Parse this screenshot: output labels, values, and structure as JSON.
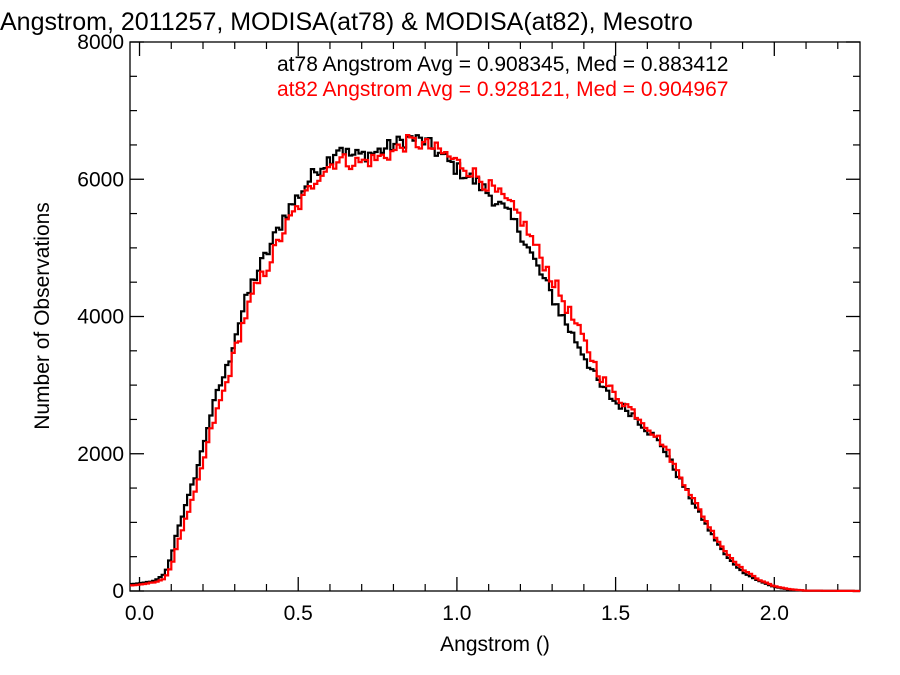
{
  "chart_data": {
    "type": "line",
    "title": "Angstrom, 2011257, MODISA(at78) & MODISA(at82), Mesotro",
    "xlabel": "Angstrom ()",
    "ylabel": "Number of Observations",
    "xlim": [
      -0.03,
      2.27
    ],
    "ylim": [
      0,
      8000
    ],
    "x_ticks": [
      0.0,
      0.5,
      1.0,
      1.5,
      2.0
    ],
    "x_tick_labels": [
      "0.0",
      "0.5",
      "1.0",
      "1.5",
      "2.0"
    ],
    "y_ticks": [
      0,
      2000,
      4000,
      6000,
      8000
    ],
    "y_tick_labels": [
      "0",
      "2000",
      "4000",
      "6000",
      "8000"
    ],
    "grid": false,
    "legend_placement": "top-right",
    "stats_lines": [
      {
        "text": "at78 Angstrom Avg = 0.908345, Med = 0.883412",
        "color": "#000000"
      },
      {
        "text": "at82 Angstrom Avg = 0.928121, Med = 0.904967",
        "color": "#ff0000"
      }
    ],
    "series": [
      {
        "color": "#000000",
        "points": [
          [
            -0.03,
            0
          ],
          [
            -0.03,
            100
          ],
          [
            0.0,
            110
          ],
          [
            0.05,
            150
          ],
          [
            0.08,
            250
          ],
          [
            0.1,
            500
          ],
          [
            0.12,
            900
          ],
          [
            0.15,
            1300
          ],
          [
            0.18,
            1750
          ],
          [
            0.2,
            2100
          ],
          [
            0.22,
            2500
          ],
          [
            0.25,
            2950
          ],
          [
            0.28,
            3300
          ],
          [
            0.3,
            3700
          ],
          [
            0.33,
            4150
          ],
          [
            0.36,
            4550
          ],
          [
            0.4,
            4900
          ],
          [
            0.43,
            5200
          ],
          [
            0.46,
            5500
          ],
          [
            0.5,
            5750
          ],
          [
            0.53,
            5950
          ],
          [
            0.56,
            6150
          ],
          [
            0.6,
            6300
          ],
          [
            0.63,
            6500
          ],
          [
            0.66,
            6350
          ],
          [
            0.7,
            6350
          ],
          [
            0.75,
            6400
          ],
          [
            0.8,
            6500
          ],
          [
            0.85,
            6600
          ],
          [
            0.9,
            6550
          ],
          [
            0.95,
            6350
          ],
          [
            1.0,
            6150
          ],
          [
            1.05,
            6000
          ],
          [
            1.1,
            5800
          ],
          [
            1.15,
            5550
          ],
          [
            1.2,
            5250
          ],
          [
            1.25,
            4750
          ],
          [
            1.3,
            4300
          ],
          [
            1.35,
            3850
          ],
          [
            1.4,
            3450
          ],
          [
            1.45,
            3000
          ],
          [
            1.5,
            2750
          ],
          [
            1.55,
            2600
          ],
          [
            1.6,
            2350
          ],
          [
            1.65,
            2100
          ],
          [
            1.7,
            1650
          ],
          [
            1.75,
            1250
          ],
          [
            1.8,
            850
          ],
          [
            1.85,
            500
          ],
          [
            1.9,
            280
          ],
          [
            1.95,
            150
          ],
          [
            2.0,
            60
          ],
          [
            2.05,
            20
          ],
          [
            2.1,
            5
          ],
          [
            2.27,
            0
          ]
        ]
      },
      {
        "color": "#ff0000",
        "points": [
          [
            -0.03,
            0
          ],
          [
            -0.03,
            80
          ],
          [
            0.0,
            90
          ],
          [
            0.05,
            130
          ],
          [
            0.08,
            180
          ],
          [
            0.1,
            350
          ],
          [
            0.12,
            700
          ],
          [
            0.15,
            1100
          ],
          [
            0.18,
            1500
          ],
          [
            0.2,
            1850
          ],
          [
            0.22,
            2250
          ],
          [
            0.25,
            2700
          ],
          [
            0.28,
            3100
          ],
          [
            0.3,
            3500
          ],
          [
            0.33,
            3950
          ],
          [
            0.36,
            4350
          ],
          [
            0.4,
            4700
          ],
          [
            0.43,
            5000
          ],
          [
            0.46,
            5300
          ],
          [
            0.5,
            5600
          ],
          [
            0.53,
            5800
          ],
          [
            0.56,
            6050
          ],
          [
            0.6,
            6200
          ],
          [
            0.63,
            6300
          ],
          [
            0.66,
            6250
          ],
          [
            0.7,
            6250
          ],
          [
            0.75,
            6300
          ],
          [
            0.8,
            6400
          ],
          [
            0.85,
            6550
          ],
          [
            0.9,
            6500
          ],
          [
            0.95,
            6400
          ],
          [
            1.0,
            6250
          ],
          [
            1.05,
            6100
          ],
          [
            1.1,
            5900
          ],
          [
            1.15,
            5700
          ],
          [
            1.2,
            5450
          ],
          [
            1.25,
            5000
          ],
          [
            1.3,
            4550
          ],
          [
            1.35,
            4100
          ],
          [
            1.4,
            3650
          ],
          [
            1.45,
            3150
          ],
          [
            1.5,
            2850
          ],
          [
            1.55,
            2650
          ],
          [
            1.6,
            2400
          ],
          [
            1.65,
            2150
          ],
          [
            1.7,
            1700
          ],
          [
            1.75,
            1300
          ],
          [
            1.8,
            900
          ],
          [
            1.85,
            550
          ],
          [
            1.9,
            320
          ],
          [
            1.95,
            170
          ],
          [
            2.0,
            70
          ],
          [
            2.05,
            25
          ],
          [
            2.1,
            5
          ],
          [
            2.27,
            0
          ]
        ]
      }
    ]
  }
}
